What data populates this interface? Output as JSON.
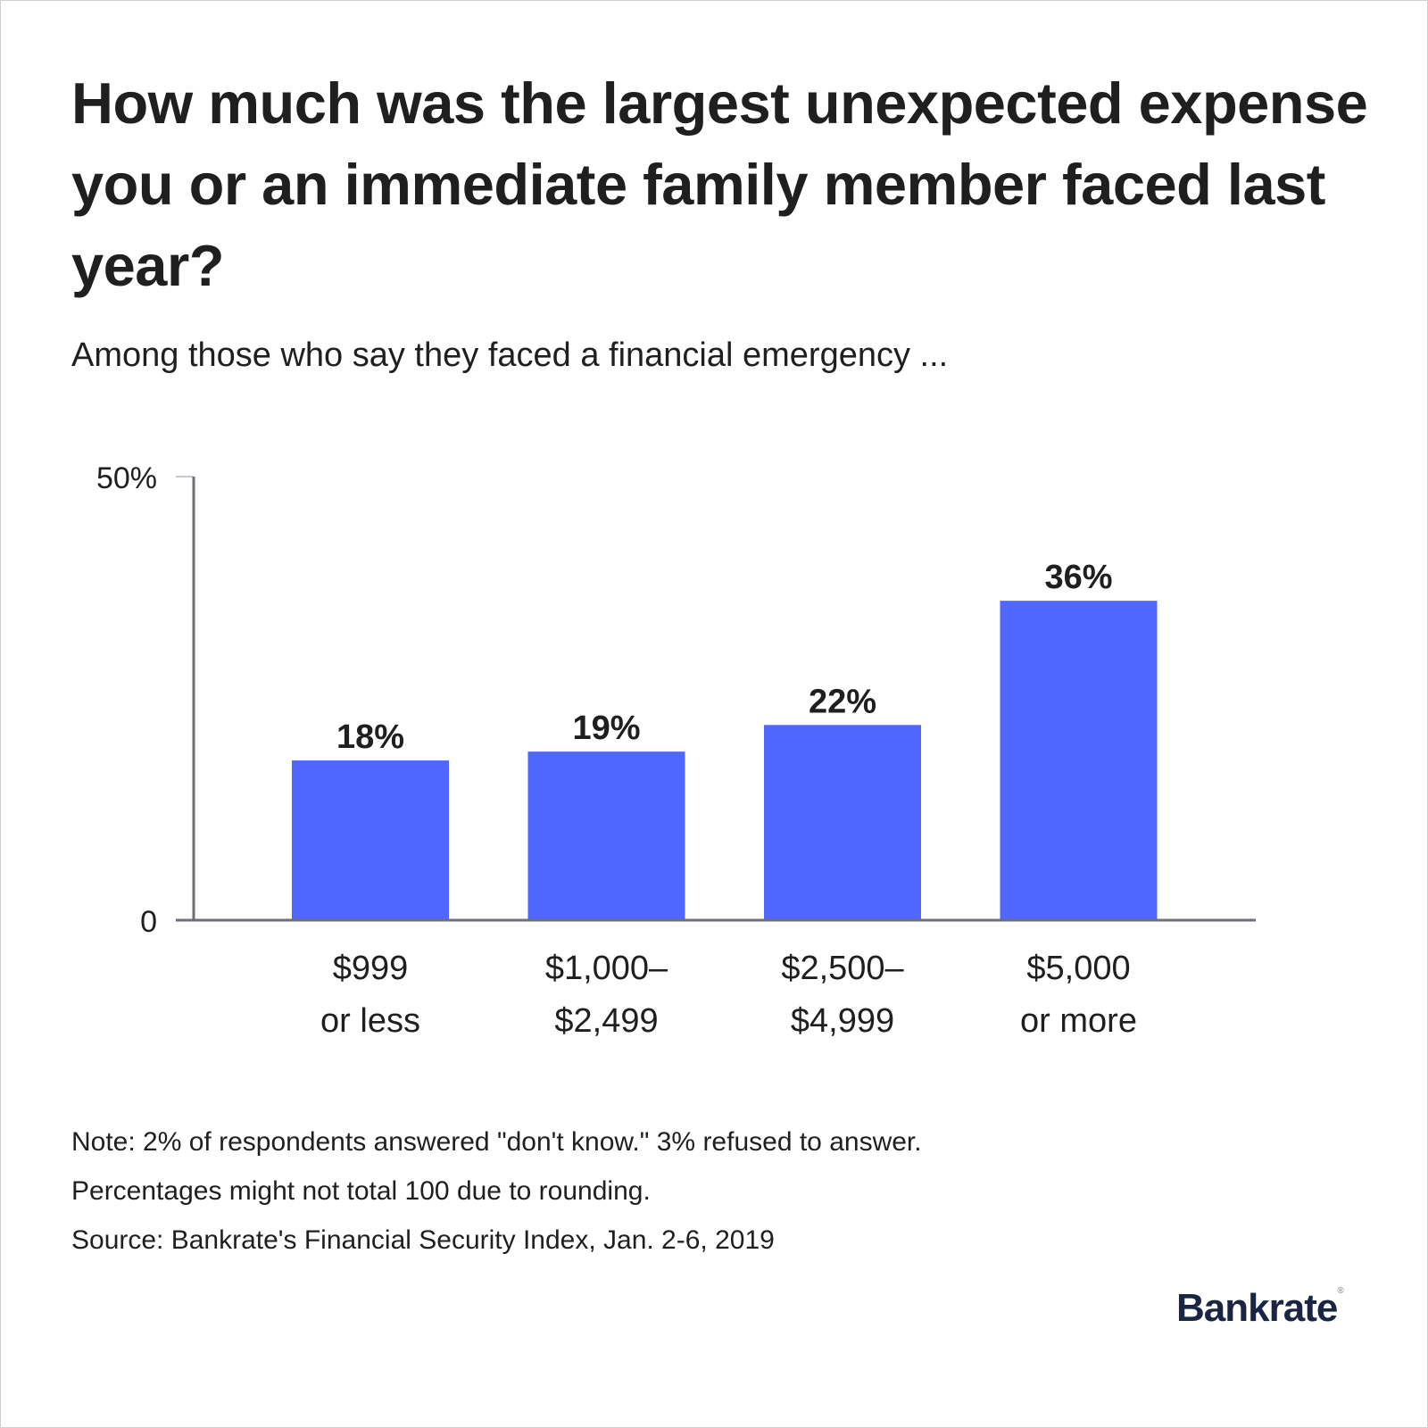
{
  "brand": "Bankrate",
  "chart_data": {
    "type": "bar",
    "title": "How much was the largest unexpected expense you or an immediate family member faced last year?",
    "subtitle": "Among those who say they faced a financial emergency ...",
    "categories": [
      [
        "$999",
        "or less"
      ],
      [
        "$1,000–",
        "$2,499"
      ],
      [
        "$2,500–",
        "$4,999"
      ],
      [
        "$5,000",
        "or more"
      ]
    ],
    "values": [
      18,
      19,
      22,
      36
    ],
    "data_labels": [
      "18%",
      "19%",
      "22%",
      "36%"
    ],
    "ylim": [
      0,
      50
    ],
    "yticks": [
      {
        "value": 0,
        "label": "0"
      },
      {
        "value": 50,
        "label": "50%"
      }
    ],
    "grid": false,
    "bar_color": "#4f66ff",
    "notes": [
      "Note: 2% of respondents answered \"don't know.\" 3% refused to answer.",
      "Percentages might not total 100 due to rounding.",
      "Source: Bankrate's Financial Security Index, Jan. 2-6, 2019"
    ]
  }
}
